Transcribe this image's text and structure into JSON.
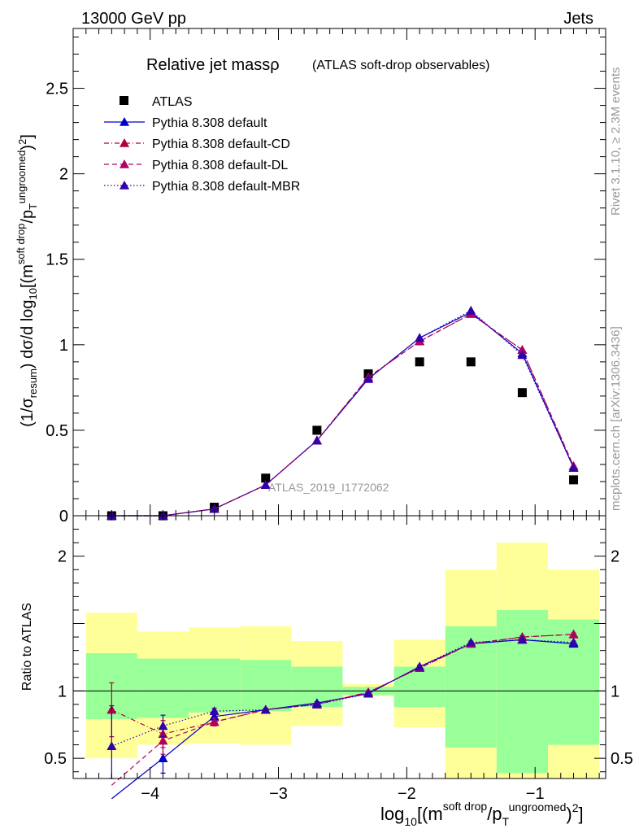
{
  "header": {
    "left": "13000 GeV pp",
    "right": "Jets"
  },
  "side_text": {
    "version": "Rivet 3.1.10, ≥ 2.3M events",
    "source": "mcplots.cern.ch [arXiv:1306.3436]"
  },
  "colors": {
    "data": "#000000",
    "default": "#0000cc",
    "default_cd": "#b00040",
    "default_dl": "#b00060",
    "default_mbr": "#3300aa",
    "band_inner": "#99ff99",
    "band_outer": "#ffff99"
  },
  "chart_data": [
    {
      "type": "scatter",
      "title": "Relative jet massρ",
      "subtitle": "(ATLAS soft-drop observables)",
      "ylabel": "(1/σresum) dσ/d log10[(m soft drop / pT ungroomed)2]",
      "analysis_label": "ATLAS_2019_I1772062",
      "ylim": [
        0,
        2.85
      ],
      "xlim": [
        -4.6,
        -0.45
      ],
      "y_ticks": [
        "0",
        "0.5",
        "1",
        "1.5",
        "2",
        "2.5"
      ],
      "x": [
        -4.3,
        -3.9,
        -3.5,
        -3.1,
        -2.7,
        -2.3,
        -1.9,
        -1.5,
        -1.1,
        -0.7
      ],
      "series": [
        {
          "name": "ATLAS",
          "marker": "square",
          "values": [
            0.0,
            0.0,
            0.05,
            0.22,
            0.5,
            0.83,
            0.9,
            0.9,
            0.72,
            0.21
          ]
        },
        {
          "name": "Pythia 8.308 default",
          "style": "solid",
          "values": [
            0.0,
            0.0,
            0.04,
            0.18,
            0.44,
            0.8,
            1.04,
            1.19,
            0.95,
            0.28
          ]
        },
        {
          "name": "Pythia 8.308 default-CD",
          "style": "dashdot",
          "values": [
            0.0,
            0.0,
            0.04,
            0.18,
            0.44,
            0.81,
            1.02,
            1.18,
            0.97,
            0.29
          ]
        },
        {
          "name": "Pythia 8.308 default-DL",
          "style": "dashed",
          "values": [
            0.0,
            0.0,
            0.04,
            0.18,
            0.44,
            0.81,
            1.02,
            1.18,
            0.97,
            0.29
          ]
        },
        {
          "name": "Pythia 8.308 default-MBR",
          "style": "dotted",
          "values": [
            0.0,
            0.0,
            0.04,
            0.18,
            0.44,
            0.8,
            1.04,
            1.2,
            0.94,
            0.28
          ]
        }
      ]
    },
    {
      "type": "line",
      "ylabel": "Ratio to ATLAS",
      "xlabel": "log10[(m soft drop / pT ungroomed)2]",
      "xlim": [
        -4.6,
        -0.45
      ],
      "ylim": [
        0.35,
        2.3
      ],
      "x_ticks": [
        "−4",
        "−3",
        "−2",
        "−1"
      ],
      "y_ticks": [
        "0.5",
        "1",
        "2"
      ],
      "x": [
        -4.3,
        -3.9,
        -3.5,
        -3.1,
        -2.7,
        -2.3,
        -1.9,
        -1.5,
        -1.1,
        -0.7
      ],
      "bin_edges": [
        -4.5,
        -4.1,
        -3.7,
        -3.3,
        -2.9,
        -2.5,
        -2.1,
        -1.7,
        -1.3,
        -0.9,
        -0.5
      ],
      "band_inner": {
        "low": [
          0.79,
          0.8,
          0.84,
          0.85,
          0.88,
          0.97,
          0.88,
          0.58,
          0.39,
          0.6
        ],
        "high": [
          1.28,
          1.24,
          1.24,
          1.23,
          1.18,
          1.03,
          1.18,
          1.48,
          1.6,
          1.53
        ]
      },
      "band_outer": {
        "low": [
          0.5,
          0.6,
          0.61,
          0.6,
          0.74,
          0.96,
          0.73,
          0.35,
          0.35,
          0.35
        ],
        "high": [
          1.58,
          1.44,
          1.47,
          1.48,
          1.37,
          1.05,
          1.38,
          1.9,
          2.1,
          1.9
        ]
      },
      "series": [
        {
          "name": "Pythia 8.308 default",
          "style": "solid",
          "values": [
            0.2,
            0.5,
            0.81,
            0.86,
            0.91,
            0.98,
            1.18,
            1.35,
            1.38,
            1.35
          ],
          "err": [
            0,
            0.11,
            0.03,
            0.01,
            0.01,
            0.01,
            0.01,
            0.01,
            0.01,
            0.01
          ]
        },
        {
          "name": "Pythia 8.308 default-CD",
          "style": "dashdot",
          "values": [
            0.86,
            0.68,
            0.77,
            0.86,
            0.9,
            0.99,
            1.17,
            1.35,
            1.4,
            1.42
          ],
          "err": [
            0.2,
            0.1,
            0.03,
            0.01,
            0.01,
            0.01,
            0.01,
            0.01,
            0.01,
            0.01
          ]
        },
        {
          "name": "Pythia 8.308 default-DL",
          "style": "dashed",
          "values": [
            0.3,
            0.63,
            0.77,
            0.86,
            0.9,
            0.99,
            1.17,
            1.35,
            1.4,
            1.42
          ],
          "err": [
            0,
            0.1,
            0.03,
            0.01,
            0.01,
            0.01,
            0.01,
            0.01,
            0.01,
            0.01
          ]
        },
        {
          "name": "Pythia 8.308 default-MBR",
          "style": "dotted",
          "values": [
            0.59,
            0.74,
            0.85,
            0.86,
            0.9,
            0.98,
            1.18,
            1.36,
            1.38,
            1.36
          ],
          "err": [
            0.3,
            0.08,
            0.02,
            0.01,
            0.01,
            0.01,
            0.01,
            0.01,
            0.01,
            0.01
          ]
        }
      ]
    }
  ]
}
